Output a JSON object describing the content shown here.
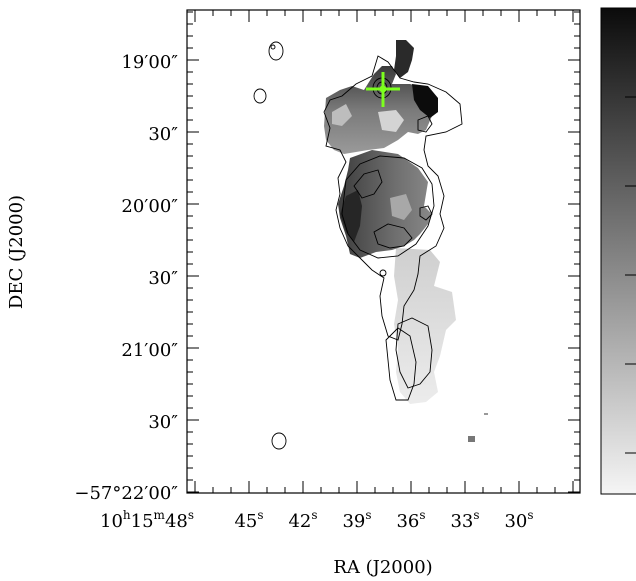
{
  "figure": {
    "xlabel": "RA (J2000)",
    "ylabel": "DEC (J2000)",
    "ra_ticks": {
      "first": {
        "h": "10",
        "m": "15",
        "s": "48"
      },
      "others": [
        "45",
        "42",
        "39",
        "36",
        "33",
        "30"
      ],
      "unit_h": "h",
      "unit_m": "m",
      "unit_s": "s"
    },
    "dec_ticks": [
      {
        "label": "19′00″"
      },
      {
        "label": "30″"
      },
      {
        "label": "20′00″"
      },
      {
        "label": "30″"
      },
      {
        "label": "21′00″"
      },
      {
        "label": "30″"
      },
      {
        "label": "−57°22′00″"
      }
    ],
    "marker": {
      "type": "cross",
      "color": "#7cff1e"
    },
    "colorbar": {
      "from_color": "#f5f5f5",
      "to_color": "#0b0b0b"
    }
  }
}
